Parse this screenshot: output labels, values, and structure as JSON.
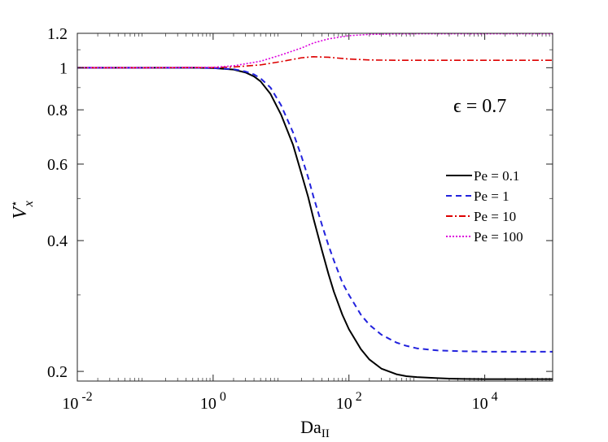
{
  "chart_data": {
    "type": "line",
    "title": "",
    "xscale": "log",
    "yscale": "log",
    "xlim": [
      0.01,
      100000
    ],
    "ylim": [
      0.19,
      1.2
    ],
    "xlabel_main": "Da",
    "xlabel_sub": "II",
    "ylabel_main": "V",
    "ylabel_sup": "⋆",
    "ylabel_sub": "x",
    "annotation": "ϵ = 0.7",
    "x_ticks": [
      {
        "value": 0.01,
        "base": "10",
        "exp": "-2"
      },
      {
        "value": 1,
        "base": "10",
        "exp": "0"
      },
      {
        "value": 100,
        "base": "10",
        "exp": "2"
      },
      {
        "value": 10000,
        "base": "10",
        "exp": "4"
      }
    ],
    "y_ticks": [
      {
        "value": 0.2,
        "label": "0.2"
      },
      {
        "value": 0.4,
        "label": "0.4"
      },
      {
        "value": 0.6,
        "label": "0.6"
      },
      {
        "value": 0.8,
        "label": "0.8"
      },
      {
        "value": 1.0,
        "label": "1"
      },
      {
        "value": 1.2,
        "label": "1.2"
      }
    ],
    "legend_position": "right",
    "series": [
      {
        "name": "Pe = 0.1",
        "color": "#000000",
        "dash": "",
        "x": [
          0.01,
          0.1,
          0.5,
          1,
          2,
          3,
          4,
          5,
          7,
          10,
          15,
          20,
          25,
          30,
          40,
          50,
          60,
          80,
          100,
          150,
          200,
          300,
          500,
          700,
          1000,
          2000,
          3000,
          5000,
          10000,
          100000
        ],
        "y": [
          1.0,
          1.0,
          1.0,
          0.998,
          0.99,
          0.975,
          0.955,
          0.93,
          0.87,
          0.78,
          0.665,
          0.57,
          0.505,
          0.45,
          0.38,
          0.335,
          0.305,
          0.27,
          0.25,
          0.225,
          0.213,
          0.203,
          0.197,
          0.195,
          0.194,
          0.193,
          0.1925,
          0.1922,
          0.192,
          0.192
        ]
      },
      {
        "name": "Pe = 1",
        "color": "#2222dd",
        "dash": "7,5",
        "x": [
          0.01,
          0.1,
          0.5,
          1,
          2,
          3,
          4,
          5,
          7,
          10,
          15,
          20,
          25,
          30,
          40,
          50,
          60,
          80,
          100,
          150,
          200,
          300,
          500,
          700,
          1000,
          2000,
          3000,
          5000,
          10000,
          100000
        ],
        "y": [
          1.0,
          1.0,
          1.0,
          0.998,
          0.992,
          0.98,
          0.965,
          0.945,
          0.9,
          0.82,
          0.71,
          0.625,
          0.56,
          0.505,
          0.435,
          0.39,
          0.36,
          0.32,
          0.3,
          0.27,
          0.256,
          0.243,
          0.233,
          0.229,
          0.226,
          0.2235,
          0.223,
          0.2225,
          0.222,
          0.222
        ]
      },
      {
        "name": "Pe = 10",
        "color": "#dd0000",
        "dash": "8,3,2,3",
        "x": [
          0.01,
          0.1,
          1,
          2,
          5,
          10,
          20,
          30,
          50,
          100,
          200,
          500,
          1000,
          10000,
          100000
        ],
        "y": [
          1.0,
          1.0,
          1.001,
          1.004,
          1.015,
          1.033,
          1.054,
          1.06,
          1.057,
          1.047,
          1.042,
          1.04,
          1.04,
          1.04,
          1.04
        ]
      },
      {
        "name": "Pe = 100",
        "color": "#dd00dd",
        "dash": "2,2",
        "x": [
          0.01,
          0.1,
          1,
          2,
          5,
          10,
          20,
          30,
          50,
          100,
          200,
          500,
          1000,
          10000,
          100000
        ],
        "y": [
          1.0,
          1.0,
          1.002,
          1.01,
          1.035,
          1.07,
          1.11,
          1.14,
          1.165,
          1.185,
          1.193,
          1.196,
          1.197,
          1.197,
          1.197
        ]
      }
    ]
  }
}
